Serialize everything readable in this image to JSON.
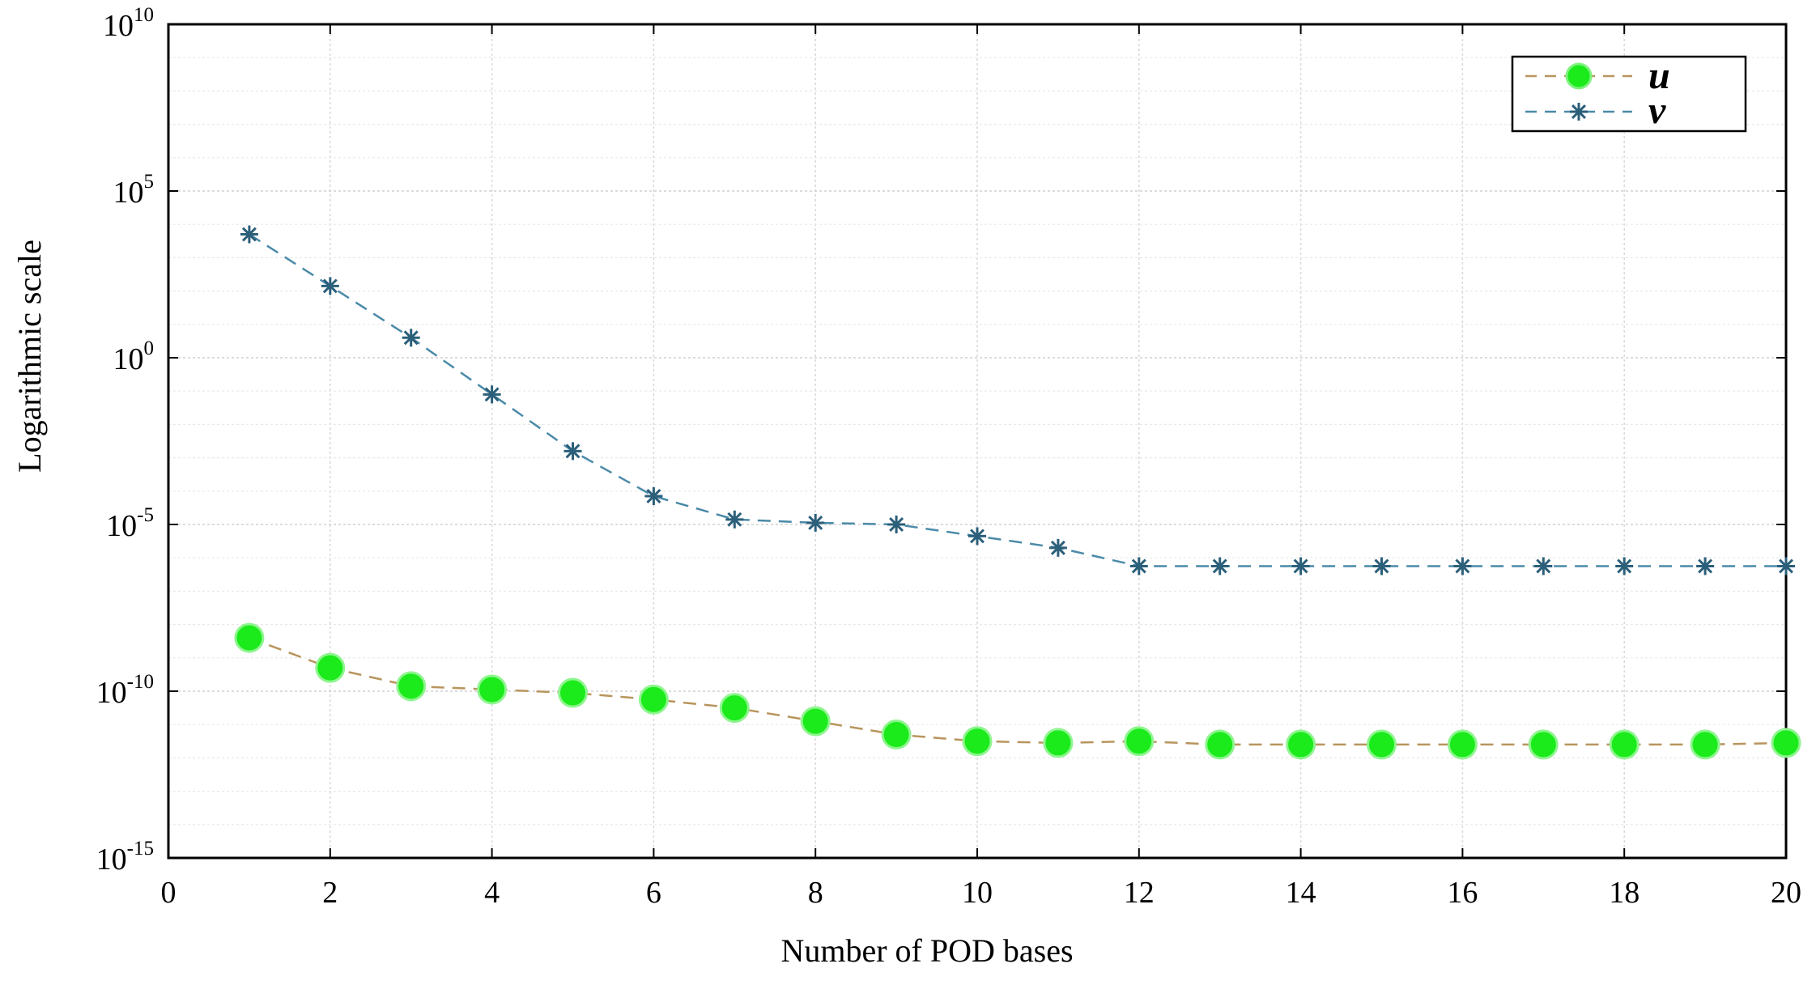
{
  "chart_data": {
    "type": "line",
    "title": "",
    "xlabel": "Number of POD bases",
    "ylabel": "Logarithmic scale",
    "yscale": "log",
    "xlim": [
      0,
      20
    ],
    "ylim_exp": [
      -15,
      10
    ],
    "x_ticks": [
      "0",
      "2",
      "4",
      "6",
      "8",
      "10",
      "12",
      "14",
      "16",
      "18",
      "20"
    ],
    "y_ticks": [
      {
        "base": "10",
        "exp": "10"
      },
      {
        "base": "10",
        "exp": "5"
      },
      {
        "base": "10",
        "exp": "0"
      },
      {
        "base": "10",
        "exp": "-5"
      },
      {
        "base": "10",
        "exp": "-10"
      },
      {
        "base": "10",
        "exp": "-15"
      }
    ],
    "grid": true,
    "legend_position": "top-right",
    "series": [
      {
        "name": "u",
        "color": "#1bea1b",
        "line_color": "#b8955e",
        "marker": "circle",
        "x": [
          1,
          2,
          3,
          4,
          5,
          6,
          7,
          8,
          9,
          10,
          11,
          12,
          13,
          14,
          15,
          16,
          17,
          18,
          19,
          20
        ],
        "log10_values": [
          -8.4,
          -9.3,
          -9.85,
          -9.95,
          -10.05,
          -10.25,
          -10.5,
          -10.9,
          -11.3,
          -11.5,
          -11.55,
          -11.5,
          -11.6,
          -11.6,
          -11.6,
          -11.6,
          -11.6,
          -11.6,
          -11.6,
          -11.55
        ]
      },
      {
        "name": "v",
        "color": "#2b5f7a",
        "line_color": "#4a8aa8",
        "marker": "star",
        "x": [
          1,
          2,
          3,
          4,
          5,
          6,
          7,
          8,
          9,
          10,
          11,
          12,
          13,
          14,
          15,
          16,
          17,
          18,
          19,
          20
        ],
        "log10_values": [
          3.7,
          2.15,
          0.6,
          -1.1,
          -2.8,
          -4.15,
          -4.85,
          -4.95,
          -5.0,
          -5.35,
          -5.7,
          -6.25,
          -6.25,
          -6.25,
          -6.25,
          -6.25,
          -6.25,
          -6.25,
          -6.25,
          -6.25
        ]
      }
    ]
  }
}
